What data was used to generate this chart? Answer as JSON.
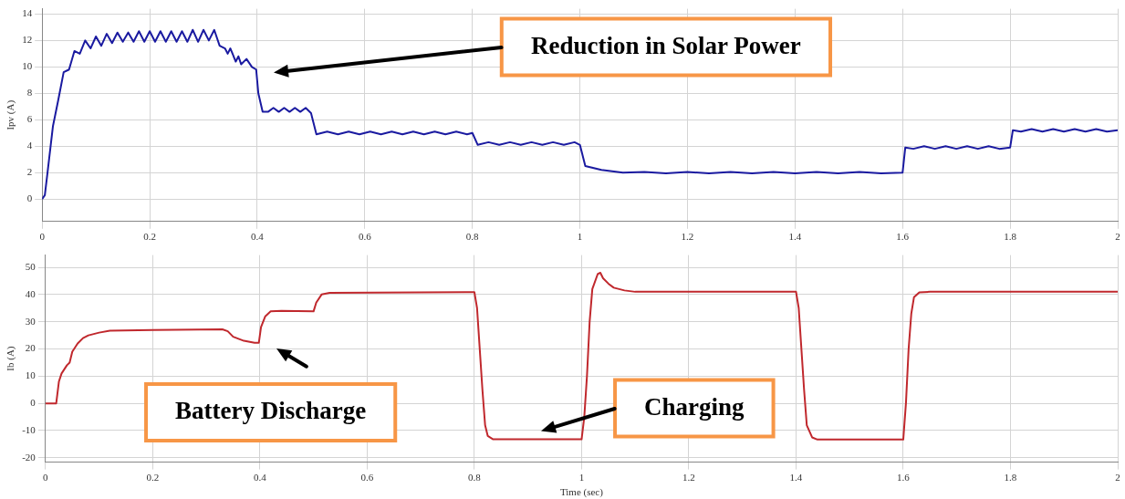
{
  "chart_data": [
    {
      "type": "line",
      "ylabel": "Ipv (A)",
      "xlim": [
        0,
        2
      ],
      "ylim": [
        -1.7,
        14.4
      ],
      "xticks": [
        0,
        0.2,
        0.4,
        0.6,
        0.8,
        1,
        1.2,
        1.4,
        1.6,
        1.8,
        2
      ],
      "yticks": [
        0,
        2,
        4,
        6,
        8,
        10,
        12,
        14
      ],
      "grid": true,
      "legend": false,
      "marker": "none",
      "x": [
        0,
        0.005,
        0.01,
        0.02,
        0.03,
        0.04,
        0.05,
        0.06,
        0.07,
        0.08,
        0.09,
        0.1,
        0.11,
        0.12,
        0.13,
        0.14,
        0.15,
        0.16,
        0.17,
        0.18,
        0.19,
        0.2,
        0.21,
        0.22,
        0.23,
        0.24,
        0.25,
        0.26,
        0.27,
        0.28,
        0.29,
        0.3,
        0.31,
        0.32,
        0.33,
        0.34,
        0.345,
        0.35,
        0.36,
        0.365,
        0.37,
        0.38,
        0.39,
        0.398,
        0.402,
        0.41,
        0.42,
        0.43,
        0.44,
        0.45,
        0.46,
        0.47,
        0.48,
        0.49,
        0.5,
        0.51,
        0.53,
        0.55,
        0.57,
        0.59,
        0.61,
        0.63,
        0.65,
        0.67,
        0.69,
        0.71,
        0.73,
        0.75,
        0.77,
        0.79,
        0.8,
        0.81,
        0.83,
        0.85,
        0.87,
        0.89,
        0.91,
        0.93,
        0.95,
        0.97,
        0.99,
        1.0,
        1.01,
        1.04,
        1.08,
        1.12,
        1.16,
        1.2,
        1.24,
        1.28,
        1.32,
        1.36,
        1.4,
        1.44,
        1.48,
        1.52,
        1.56,
        1.6,
        1.605,
        1.62,
        1.64,
        1.66,
        1.68,
        1.7,
        1.72,
        1.74,
        1.76,
        1.78,
        1.8,
        1.805,
        1.82,
        1.84,
        1.86,
        1.88,
        1.9,
        1.92,
        1.94,
        1.96,
        1.98,
        2.0
      ],
      "series": [
        {
          "color": "#1a1aa0",
          "values": [
            0,
            0.3,
            2,
            5.5,
            7.5,
            9.6,
            9.8,
            11.2,
            11,
            12,
            11.4,
            12.3,
            11.6,
            12.5,
            11.8,
            12.6,
            11.9,
            12.6,
            11.9,
            12.7,
            11.9,
            12.7,
            11.9,
            12.7,
            11.9,
            12.7,
            11.9,
            12.7,
            11.9,
            12.8,
            11.9,
            12.8,
            12,
            12.8,
            11.6,
            11.4,
            11,
            11.4,
            10.4,
            10.8,
            10.2,
            10.6,
            10,
            9.8,
            8,
            6.6,
            6.6,
            6.9,
            6.6,
            6.9,
            6.6,
            6.9,
            6.6,
            6.9,
            6.5,
            4.9,
            5.1,
            4.9,
            5.1,
            4.9,
            5.1,
            4.9,
            5.1,
            4.9,
            5.1,
            4.9,
            5.1,
            4.9,
            5.1,
            4.9,
            5,
            4.1,
            4.3,
            4.1,
            4.3,
            4.1,
            4.3,
            4.1,
            4.3,
            4.1,
            4.3,
            4.1,
            2.5,
            2.2,
            2,
            2.05,
            1.95,
            2.05,
            1.95,
            2.05,
            1.95,
            2.05,
            1.95,
            2.05,
            1.95,
            2.05,
            1.95,
            2,
            3.9,
            3.8,
            4,
            3.8,
            4,
            3.8,
            4,
            3.8,
            4,
            3.8,
            3.9,
            5.2,
            5.1,
            5.3,
            5.1,
            5.3,
            5.1,
            5.3,
            5.1,
            5.3,
            5.1,
            5.2
          ]
        }
      ],
      "annotations": [
        "Reduction in Solar Power"
      ]
    },
    {
      "type": "line",
      "xlabel": "Time (sec)",
      "ylabel": "Ib (A)",
      "xlim": [
        0,
        2
      ],
      "ylim": [
        -21.6,
        54.5
      ],
      "xticks": [
        0,
        0.2,
        0.4,
        0.6,
        0.8,
        1,
        1.2,
        1.4,
        1.6,
        1.8,
        2
      ],
      "yticks": [
        -20,
        -10,
        0,
        10,
        20,
        30,
        40,
        50
      ],
      "grid": true,
      "legend": false,
      "marker": "none",
      "x": [
        0,
        0.02,
        0.025,
        0.03,
        0.04,
        0.045,
        0.05,
        0.06,
        0.07,
        0.08,
        0.1,
        0.12,
        0.2,
        0.33,
        0.34,
        0.35,
        0.37,
        0.39,
        0.398,
        0.402,
        0.41,
        0.42,
        0.44,
        0.5,
        0.505,
        0.515,
        0.53,
        0.8,
        0.805,
        0.81,
        0.815,
        0.82,
        0.825,
        0.835,
        1.0,
        1.005,
        1.01,
        1.015,
        1.02,
        1.03,
        1.035,
        1.04,
        1.05,
        1.06,
        1.08,
        1.1,
        1.4,
        1.405,
        1.41,
        1.415,
        1.42,
        1.43,
        1.44,
        1.6,
        1.605,
        1.61,
        1.615,
        1.62,
        1.63,
        1.65,
        2.0
      ],
      "series": [
        {
          "color": "#c0282d",
          "values": [
            0,
            0,
            8,
            11,
            14,
            15,
            19,
            22,
            24,
            25,
            26,
            26.7,
            27,
            27.2,
            26.5,
            24.5,
            23,
            22.3,
            22.3,
            28,
            32,
            33.8,
            34,
            33.8,
            37,
            40,
            40.6,
            40.9,
            35,
            20,
            5,
            -8,
            -12,
            -13.2,
            -13.2,
            -5,
            10,
            30,
            42,
            47.5,
            48,
            46,
            44,
            42.5,
            41.5,
            41,
            41,
            35,
            20,
            5,
            -8,
            -12.5,
            -13.3,
            -13.3,
            0,
            20,
            33,
            39,
            40.8,
            41,
            41
          ]
        }
      ],
      "annotations": [
        "Battery Discharge",
        "Charging"
      ]
    }
  ]
}
